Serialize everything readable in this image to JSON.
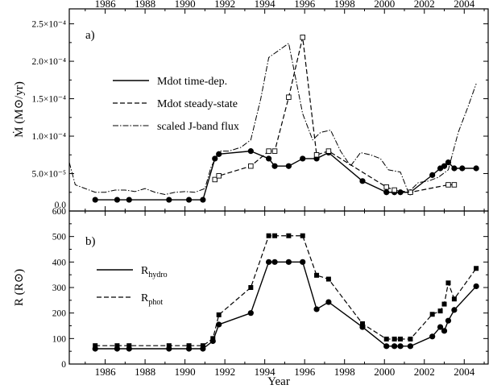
{
  "chart_data": [
    {
      "type": "line",
      "panel_label": "a)",
      "ylabel": "Ṁ (M⊙/yr)",
      "xlim": [
        1984.2,
        2005.2
      ],
      "ylim": [
        0,
        0.00027
      ],
      "x_ticks": [
        1986,
        1988,
        1990,
        1992,
        1994,
        1996,
        1998,
        2000,
        2002,
        2004
      ],
      "y_ticks": [
        {
          "value": 0.0,
          "label": "0.0"
        },
        {
          "value": 5e-05,
          "label": "5.0×10⁻⁵"
        },
        {
          "value": 0.0001,
          "label": "1.0×10⁻⁴"
        },
        {
          "value": 0.00015,
          "label": "1.5×10⁻⁴"
        },
        {
          "value": 0.0002,
          "label": "2.0×10⁻⁴"
        },
        {
          "value": 0.00025,
          "label": "2.5×10⁻⁴"
        }
      ],
      "series": [
        {
          "name": "Mdot time-dep.",
          "style": "solid",
          "marker": "filled-circle",
          "x": [
            1985.5,
            1986.6,
            1987.2,
            1989.2,
            1990.2,
            1990.9,
            1991.5,
            1991.7,
            1993.3,
            1994.2,
            1994.5,
            1995.2,
            1995.9,
            1996.6,
            1997.2,
            1998.9,
            2000.1,
            2000.5,
            2000.8,
            2001.3,
            2002.4,
            2002.8,
            2003.0,
            2003.2,
            2003.5,
            2003.9,
            2004.6
          ],
          "y": [
            1.5e-05,
            1.5e-05,
            1.5e-05,
            1.5e-05,
            1.5e-05,
            1.5e-05,
            7e-05,
            7.6e-05,
            8e-05,
            7e-05,
            6e-05,
            6e-05,
            7e-05,
            7e-05,
            7.8e-05,
            4e-05,
            2.5e-05,
            2.5e-05,
            2.5e-05,
            2.5e-05,
            4.8e-05,
            5.7e-05,
            6e-05,
            6.5e-05,
            5.7e-05,
            5.7e-05,
            5.7e-05
          ]
        },
        {
          "name": "Mdot steady-state",
          "style": "dashed",
          "marker": "open-square",
          "x": [
            1991.5,
            1991.7,
            1993.3,
            1994.2,
            1994.5,
            1995.2,
            1995.9,
            1996.6,
            1997.2,
            2000.1,
            2000.5,
            2001.3,
            2003.2,
            2003.5
          ],
          "y": [
            4.2e-05,
            4.7e-05,
            6e-05,
            8e-05,
            8e-05,
            0.000152,
            0.000232,
            7.5e-05,
            8e-05,
            3.2e-05,
            2.8e-05,
            2.5e-05,
            3.5e-05,
            3.5e-05
          ]
        },
        {
          "name": "scaled J-band flux",
          "style": "dash-dot",
          "marker": "none",
          "x": [
            1984.2,
            1984.5,
            1985.0,
            1985.5,
            1986.0,
            1986.5,
            1987.0,
            1987.5,
            1988.0,
            1988.5,
            1989.0,
            1989.5,
            1990.0,
            1990.5,
            1991.0,
            1991.3,
            1991.7,
            1992.2,
            1992.8,
            1993.3,
            1993.8,
            1994.2,
            1995.2,
            1995.9,
            1996.4,
            1996.8,
            1997.3,
            1997.8,
            1998.3,
            1998.8,
            1999.3,
            1999.8,
            2000.2,
            2000.8,
            2001.2,
            2001.7,
            2002.2,
            2002.7,
            2003.2,
            2003.7,
            2004.2,
            2004.6
          ],
          "y": [
            6.5e-05,
            3.5e-05,
            3e-05,
            2.5e-05,
            2.5e-05,
            2.8e-05,
            2.8e-05,
            2.6e-05,
            3e-05,
            2.5e-05,
            2.2e-05,
            2.5e-05,
            2.6e-05,
            2.5e-05,
            3e-05,
            5.8e-05,
            8e-05,
            8e-05,
            8.5e-05,
            9.5e-05,
            0.00015,
            0.000205,
            0.000224,
            0.00013,
            9.5e-05,
            0.000105,
            0.000108,
            8e-05,
            6e-05,
            7.8e-05,
            7.5e-05,
            7e-05,
            5.5e-05,
            5.2e-05,
            2.5e-05,
            3.8e-05,
            4e-05,
            4.5e-05,
            5.5e-05,
            0.000105,
            0.00014,
            0.00017
          ]
        }
      ]
    },
    {
      "type": "line",
      "panel_label": "b)",
      "ylabel": "R (R⊙)",
      "xlabel": "Year",
      "xlim": [
        1984.2,
        2005.2
      ],
      "ylim": [
        0,
        600
      ],
      "x_ticks": [
        1986,
        1988,
        1990,
        1992,
        1994,
        1996,
        1998,
        2000,
        2002,
        2004
      ],
      "y_ticks": [
        {
          "value": 0,
          "label": "0"
        },
        {
          "value": 100,
          "label": "100"
        },
        {
          "value": 200,
          "label": "200"
        },
        {
          "value": 300,
          "label": "300"
        },
        {
          "value": 400,
          "label": "400"
        },
        {
          "value": 500,
          "label": "500"
        },
        {
          "value": 600,
          "label": "600"
        }
      ],
      "series": [
        {
          "name": "R_hydro",
          "style": "solid",
          "marker": "filled-circle",
          "x": [
            1985.5,
            1986.6,
            1987.2,
            1989.2,
            1990.2,
            1990.9,
            1991.4,
            1991.7,
            1993.3,
            1994.2,
            1994.5,
            1995.2,
            1995.9,
            1996.6,
            1997.2,
            1998.9,
            2000.1,
            2000.5,
            2000.8,
            2001.3,
            2002.4,
            2002.8,
            2003.0,
            2003.2,
            2003.5,
            2004.6
          ],
          "y": [
            60,
            60,
            60,
            60,
            60,
            60,
            90,
            155,
            200,
            400,
            400,
            400,
            400,
            215,
            243,
            145,
            70,
            70,
            70,
            70,
            108,
            145,
            130,
            170,
            212,
            305
          ]
        },
        {
          "name": "R_phot",
          "style": "dashed",
          "marker": "filled-square",
          "x": [
            1985.5,
            1986.6,
            1987.2,
            1989.2,
            1990.2,
            1990.9,
            1991.4,
            1991.7,
            1993.3,
            1994.2,
            1994.5,
            1995.2,
            1995.9,
            1996.6,
            1997.2,
            1998.9,
            2000.1,
            2000.5,
            2000.8,
            2001.3,
            2002.4,
            2002.8,
            2003.0,
            2003.2,
            2003.5,
            2004.6
          ],
          "y": [
            72,
            72,
            72,
            72,
            72,
            72,
            100,
            193,
            300,
            503,
            503,
            503,
            503,
            348,
            333,
            158,
            98,
            98,
            98,
            98,
            195,
            208,
            235,
            318,
            255,
            375
          ]
        }
      ]
    }
  ],
  "legend_a": [
    {
      "text": "Mdot time-dep."
    },
    {
      "text": "Mdot steady-state"
    },
    {
      "text": "scaled J-band flux"
    }
  ],
  "legend_b": [
    {
      "main": "R",
      "sub": "hydro"
    },
    {
      "main": "R",
      "sub": "phot"
    }
  ]
}
